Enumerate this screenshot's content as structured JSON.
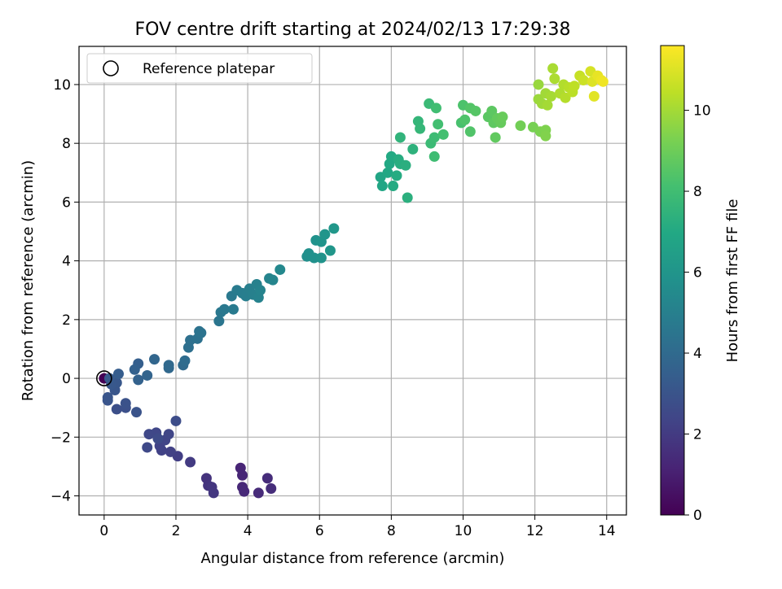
{
  "chart_data": {
    "type": "scatter",
    "title": "FOV centre drift starting at 2024/02/13 17:29:38",
    "xlabel": "Angular distance from reference (arcmin)",
    "ylabel": "Rotation from reference (arcmin)",
    "xlim": [
      -0.7,
      14.55
    ],
    "ylim": [
      -4.65,
      11.3
    ],
    "xticks": [
      0,
      2,
      4,
      6,
      8,
      10,
      12,
      14
    ],
    "yticks": [
      -4,
      -2,
      0,
      2,
      4,
      6,
      8,
      10
    ],
    "xtick_labels": [
      "0",
      "2",
      "4",
      "6",
      "8",
      "10",
      "12",
      "14"
    ],
    "ytick_labels": [
      "−4",
      "−2",
      "0",
      "2",
      "4",
      "6",
      "8",
      "10"
    ],
    "grid": true,
    "legend": {
      "position": "top-left",
      "entries": [
        {
          "label": "Reference platepar",
          "marker": "open-circle"
        }
      ]
    },
    "reference_point": {
      "x": 0,
      "y": 0
    },
    "colorbar": {
      "label": "Hours from first FF file",
      "colormap": "viridis",
      "range": [
        0,
        11.6
      ],
      "ticks": [
        0,
        2,
        4,
        6,
        8,
        10
      ],
      "tick_labels": [
        "0",
        "2",
        "4",
        "6",
        "8",
        "10"
      ]
    },
    "points": [
      {
        "x": 0.0,
        "y": 0.0,
        "t": 0.0
      },
      {
        "x": 3.8,
        "y": -3.05,
        "t": 1.2
      },
      {
        "x": 3.85,
        "y": -3.3,
        "t": 1.25
      },
      {
        "x": 3.85,
        "y": -3.7,
        "t": 1.3
      },
      {
        "x": 3.9,
        "y": -3.85,
        "t": 1.35
      },
      {
        "x": 4.3,
        "y": -3.9,
        "t": 1.4
      },
      {
        "x": 4.55,
        "y": -3.4,
        "t": 1.45
      },
      {
        "x": 4.65,
        "y": -3.75,
        "t": 1.5
      },
      {
        "x": 2.85,
        "y": -3.4,
        "t": 1.7
      },
      {
        "x": 2.9,
        "y": -3.65,
        "t": 1.75
      },
      {
        "x": 3.0,
        "y": -3.7,
        "t": 1.8
      },
      {
        "x": 3.05,
        "y": -3.9,
        "t": 1.85
      },
      {
        "x": 2.4,
        "y": -2.85,
        "t": 2.0
      },
      {
        "x": 2.05,
        "y": -2.65,
        "t": 2.1
      },
      {
        "x": 1.85,
        "y": -2.5,
        "t": 2.2
      },
      {
        "x": 1.6,
        "y": -2.45,
        "t": 2.25
      },
      {
        "x": 1.55,
        "y": -2.3,
        "t": 2.3
      },
      {
        "x": 1.7,
        "y": -2.1,
        "t": 2.35
      },
      {
        "x": 1.8,
        "y": -1.9,
        "t": 2.4
      },
      {
        "x": 1.45,
        "y": -1.85,
        "t": 2.45
      },
      {
        "x": 1.25,
        "y": -1.9,
        "t": 2.5
      },
      {
        "x": 1.2,
        "y": -2.35,
        "t": 2.55
      },
      {
        "x": 1.5,
        "y": -2.05,
        "t": 2.6
      },
      {
        "x": 2.0,
        "y": -1.45,
        "t": 2.7
      },
      {
        "x": 0.35,
        "y": -1.05,
        "t": 2.8
      },
      {
        "x": 0.6,
        "y": -1.0,
        "t": 2.85
      },
      {
        "x": 0.6,
        "y": -0.85,
        "t": 2.9
      },
      {
        "x": 0.9,
        "y": -1.15,
        "t": 2.95
      },
      {
        "x": 0.1,
        "y": -0.75,
        "t": 3.0
      },
      {
        "x": 0.1,
        "y": -0.65,
        "t": 3.05
      },
      {
        "x": 0.3,
        "y": -0.4,
        "t": 3.1
      },
      {
        "x": 0.35,
        "y": -0.15,
        "t": 3.15
      },
      {
        "x": 0.2,
        "y": -0.2,
        "t": 3.2
      },
      {
        "x": 0.15,
        "y": 0.0,
        "t": 3.25
      },
      {
        "x": 0.4,
        "y": 0.15,
        "t": 3.4
      },
      {
        "x": 0.95,
        "y": 0.5,
        "t": 3.5
      },
      {
        "x": 0.85,
        "y": 0.3,
        "t": 3.55
      },
      {
        "x": 0.95,
        "y": -0.05,
        "t": 3.6
      },
      {
        "x": 1.2,
        "y": 0.1,
        "t": 3.7
      },
      {
        "x": 1.4,
        "y": 0.65,
        "t": 3.8
      },
      {
        "x": 1.8,
        "y": 0.35,
        "t": 3.9
      },
      {
        "x": 1.8,
        "y": 0.45,
        "t": 3.95
      },
      {
        "x": 2.2,
        "y": 0.45,
        "t": 4.0
      },
      {
        "x": 2.25,
        "y": 0.6,
        "t": 4.1
      },
      {
        "x": 2.35,
        "y": 1.05,
        "t": 4.2
      },
      {
        "x": 2.4,
        "y": 1.3,
        "t": 4.25
      },
      {
        "x": 2.6,
        "y": 1.35,
        "t": 4.3
      },
      {
        "x": 2.65,
        "y": 1.6,
        "t": 4.35
      },
      {
        "x": 2.7,
        "y": 1.55,
        "t": 4.4
      },
      {
        "x": 3.2,
        "y": 1.95,
        "t": 4.5
      },
      {
        "x": 3.25,
        "y": 2.25,
        "t": 4.6
      },
      {
        "x": 3.35,
        "y": 2.35,
        "t": 4.65
      },
      {
        "x": 3.55,
        "y": 2.8,
        "t": 4.7
      },
      {
        "x": 3.6,
        "y": 2.35,
        "t": 4.75
      },
      {
        "x": 3.7,
        "y": 3.0,
        "t": 4.8
      },
      {
        "x": 3.85,
        "y": 2.9,
        "t": 4.85
      },
      {
        "x": 3.95,
        "y": 2.8,
        "t": 4.9
      },
      {
        "x": 4.05,
        "y": 3.05,
        "t": 4.95
      },
      {
        "x": 4.15,
        "y": 2.85,
        "t": 5.0
      },
      {
        "x": 4.25,
        "y": 3.2,
        "t": 5.05
      },
      {
        "x": 4.3,
        "y": 2.75,
        "t": 5.1
      },
      {
        "x": 4.35,
        "y": 3.0,
        "t": 5.15
      },
      {
        "x": 4.6,
        "y": 3.4,
        "t": 5.2
      },
      {
        "x": 4.7,
        "y": 3.35,
        "t": 5.25
      },
      {
        "x": 4.9,
        "y": 3.7,
        "t": 5.4
      },
      {
        "x": 5.65,
        "y": 4.15,
        "t": 5.7
      },
      {
        "x": 5.7,
        "y": 4.25,
        "t": 5.75
      },
      {
        "x": 5.85,
        "y": 4.1,
        "t": 5.8
      },
      {
        "x": 5.9,
        "y": 4.7,
        "t": 5.85
      },
      {
        "x": 6.05,
        "y": 4.1,
        "t": 5.9
      },
      {
        "x": 6.05,
        "y": 4.65,
        "t": 5.95
      },
      {
        "x": 6.15,
        "y": 4.9,
        "t": 6.0
      },
      {
        "x": 6.3,
        "y": 4.35,
        "t": 6.05
      },
      {
        "x": 6.4,
        "y": 5.1,
        "t": 6.1
      },
      {
        "x": 7.7,
        "y": 6.85,
        "t": 6.8
      },
      {
        "x": 7.75,
        "y": 6.55,
        "t": 6.85
      },
      {
        "x": 7.9,
        "y": 7.0,
        "t": 6.9
      },
      {
        "x": 7.95,
        "y": 7.3,
        "t": 6.95
      },
      {
        "x": 8.0,
        "y": 7.55,
        "t": 7.0
      },
      {
        "x": 8.05,
        "y": 6.55,
        "t": 7.05
      },
      {
        "x": 8.15,
        "y": 6.9,
        "t": 7.1
      },
      {
        "x": 8.2,
        "y": 7.45,
        "t": 7.15
      },
      {
        "x": 8.25,
        "y": 7.3,
        "t": 7.2
      },
      {
        "x": 8.4,
        "y": 7.25,
        "t": 7.25
      },
      {
        "x": 8.45,
        "y": 6.15,
        "t": 7.3
      },
      {
        "x": 8.6,
        "y": 7.8,
        "t": 7.4
      },
      {
        "x": 8.25,
        "y": 8.2,
        "t": 7.5
      },
      {
        "x": 8.75,
        "y": 8.75,
        "t": 7.6
      },
      {
        "x": 8.8,
        "y": 8.5,
        "t": 7.65
      },
      {
        "x": 9.05,
        "y": 9.35,
        "t": 7.8
      },
      {
        "x": 9.1,
        "y": 8.0,
        "t": 7.85
      },
      {
        "x": 9.2,
        "y": 8.2,
        "t": 7.9
      },
      {
        "x": 9.2,
        "y": 7.55,
        "t": 7.95
      },
      {
        "x": 9.25,
        "y": 9.2,
        "t": 8.0
      },
      {
        "x": 9.3,
        "y": 8.65,
        "t": 8.05
      },
      {
        "x": 9.45,
        "y": 8.3,
        "t": 8.1
      },
      {
        "x": 9.95,
        "y": 8.7,
        "t": 8.2
      },
      {
        "x": 10.0,
        "y": 9.3,
        "t": 8.3
      },
      {
        "x": 10.05,
        "y": 8.8,
        "t": 8.35
      },
      {
        "x": 10.2,
        "y": 8.4,
        "t": 8.4
      },
      {
        "x": 10.2,
        "y": 9.2,
        "t": 8.45
      },
      {
        "x": 10.35,
        "y": 9.1,
        "t": 8.5
      },
      {
        "x": 10.7,
        "y": 8.9,
        "t": 8.6
      },
      {
        "x": 10.8,
        "y": 9.1,
        "t": 8.65
      },
      {
        "x": 10.85,
        "y": 8.7,
        "t": 8.7
      },
      {
        "x": 10.9,
        "y": 8.2,
        "t": 8.75
      },
      {
        "x": 10.95,
        "y": 8.85,
        "t": 8.8
      },
      {
        "x": 11.05,
        "y": 8.7,
        "t": 8.85
      },
      {
        "x": 11.1,
        "y": 8.9,
        "t": 8.9
      },
      {
        "x": 11.6,
        "y": 8.6,
        "t": 9.1
      },
      {
        "x": 11.95,
        "y": 8.55,
        "t": 9.2
      },
      {
        "x": 12.15,
        "y": 8.4,
        "t": 9.3
      },
      {
        "x": 12.3,
        "y": 8.45,
        "t": 9.35
      },
      {
        "x": 12.3,
        "y": 8.25,
        "t": 9.4
      },
      {
        "x": 12.1,
        "y": 10.0,
        "t": 9.8
      },
      {
        "x": 12.1,
        "y": 9.5,
        "t": 9.85
      },
      {
        "x": 12.2,
        "y": 9.35,
        "t": 9.9
      },
      {
        "x": 12.3,
        "y": 9.7,
        "t": 9.95
      },
      {
        "x": 12.35,
        "y": 9.3,
        "t": 10.0
      },
      {
        "x": 12.45,
        "y": 9.6,
        "t": 10.05
      },
      {
        "x": 12.5,
        "y": 10.55,
        "t": 10.1
      },
      {
        "x": 12.55,
        "y": 10.2,
        "t": 10.15
      },
      {
        "x": 12.7,
        "y": 9.7,
        "t": 10.2
      },
      {
        "x": 12.8,
        "y": 10.0,
        "t": 10.25
      },
      {
        "x": 12.85,
        "y": 9.55,
        "t": 10.3
      },
      {
        "x": 12.95,
        "y": 9.9,
        "t": 10.35
      },
      {
        "x": 13.05,
        "y": 9.75,
        "t": 10.4
      },
      {
        "x": 13.1,
        "y": 9.95,
        "t": 10.45
      },
      {
        "x": 13.25,
        "y": 10.3,
        "t": 10.6
      },
      {
        "x": 13.35,
        "y": 10.15,
        "t": 10.7
      },
      {
        "x": 13.55,
        "y": 10.45,
        "t": 10.9
      },
      {
        "x": 13.6,
        "y": 10.1,
        "t": 11.0
      },
      {
        "x": 13.65,
        "y": 9.6,
        "t": 11.1
      },
      {
        "x": 13.75,
        "y": 10.3,
        "t": 11.2
      },
      {
        "x": 13.85,
        "y": 10.15,
        "t": 11.3
      },
      {
        "x": 13.9,
        "y": 10.1,
        "t": 11.35
      }
    ]
  }
}
